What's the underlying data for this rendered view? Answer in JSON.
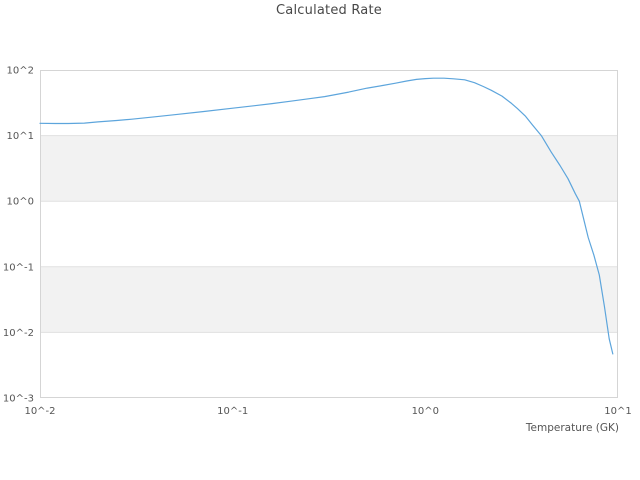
{
  "figure": {
    "title": "Calculated Rate",
    "x_axis_label": "Temperature (GK)"
  },
  "colors": {
    "line": "#5da5dc",
    "band_fill": "#f2f2f2",
    "gridline": "#e0e0e0",
    "plot_border": "#d5d5d5",
    "tick_text": "#555555",
    "title_text": "#484848",
    "background": "#ffffff"
  },
  "chart_data": {
    "type": "line",
    "title": "Calculated Rate",
    "xlabel": "Temperature (GK)",
    "ylabel": "",
    "xscale": "log",
    "yscale": "log",
    "xlim": [
      0.01,
      10
    ],
    "ylim": [
      0.001,
      100
    ],
    "x_ticks": [
      {
        "label": "10^-2",
        "value": 0.01
      },
      {
        "label": "10^-1",
        "value": 0.1
      },
      {
        "label": "10^0",
        "value": 1
      },
      {
        "label": "10^1",
        "value": 10
      }
    ],
    "y_ticks": [
      {
        "label": "10^2",
        "value": 100
      },
      {
        "label": "10^1",
        "value": 10
      },
      {
        "label": "10^0",
        "value": 1
      },
      {
        "label": "10^-1",
        "value": 0.1
      },
      {
        "label": "10^-2",
        "value": 0.01
      },
      {
        "label": "10^-3",
        "value": 0.001
      }
    ],
    "grid": "horizontal lines at each decade, alternating shaded bands, no vertical gridlines",
    "legend": null,
    "series": [
      {
        "name": "calculated-rate",
        "x": [
          0.01,
          0.012,
          0.014,
          0.017,
          0.02,
          0.025,
          0.03,
          0.04,
          0.05,
          0.07,
          0.1,
          0.13,
          0.16,
          0.2,
          0.25,
          0.3,
          0.4,
          0.5,
          0.6,
          0.7,
          0.8,
          0.9,
          1.0,
          1.1,
          1.25,
          1.4,
          1.6,
          1.8,
          2.0,
          2.2,
          2.5,
          2.8,
          3.0,
          3.3,
          3.6,
          4.0,
          4.5,
          5.0,
          5.5,
          6.0,
          6.3,
          7.0,
          7.5,
          8.0,
          8.5,
          9.0,
          9.4
        ],
        "y": [
          15.4,
          15.3,
          15.3,
          15.5,
          16.2,
          17.0,
          17.8,
          19.4,
          20.8,
          23.2,
          26.2,
          28.6,
          30.8,
          33.5,
          36.5,
          39.3,
          46.0,
          53.0,
          58.0,
          63.0,
          68.0,
          72.0,
          74.0,
          75.0,
          75.0,
          73.5,
          71.0,
          64.0,
          56.0,
          49.0,
          40.0,
          31.0,
          26.0,
          20.0,
          14.5,
          10.0,
          5.6,
          3.5,
          2.2,
          1.3,
          1.0,
          0.28,
          0.15,
          0.075,
          0.025,
          0.008,
          0.0047
        ]
      }
    ]
  }
}
